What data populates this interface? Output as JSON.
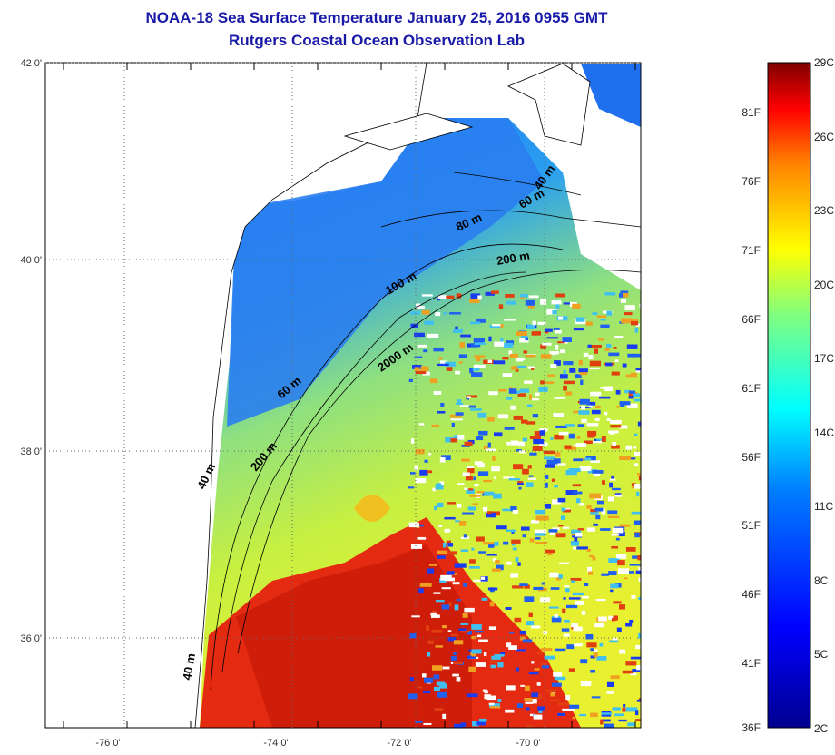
{
  "title": "NOAA-18 Sea Surface Temperature January 25, 2016 0955 GMT",
  "subtitle": "Rutgers Coastal Ocean Observation Lab",
  "map": {
    "lon_labels": [
      "-76 0'",
      "-74 0'",
      "-72 0'",
      "-70 0'"
    ],
    "lat_labels": [
      "42 0'",
      "40 0'",
      "38 0'",
      "36 0'"
    ],
    "contour_labels": [
      "40 m",
      "60 m",
      "80 m",
      "200 m",
      "100 m",
      "2000 m",
      "60 m",
      "200 m",
      "40 m",
      "40 m"
    ]
  },
  "colorbar": {
    "fahrenheit": [
      "81F",
      "76F",
      "71F",
      "66F",
      "61F",
      "56F",
      "51F",
      "46F",
      "41F",
      "36F"
    ],
    "celsius": [
      "29C",
      "26C",
      "23C",
      "20C",
      "17C",
      "14C",
      "11C",
      "8C",
      "5C",
      "2C"
    ],
    "colors": [
      "#7f0000",
      "#ff0000",
      "#ff8000",
      "#ffff00",
      "#80ff80",
      "#00ffff",
      "#0080ff",
      "#0000ff",
      "#00008f"
    ]
  }
}
